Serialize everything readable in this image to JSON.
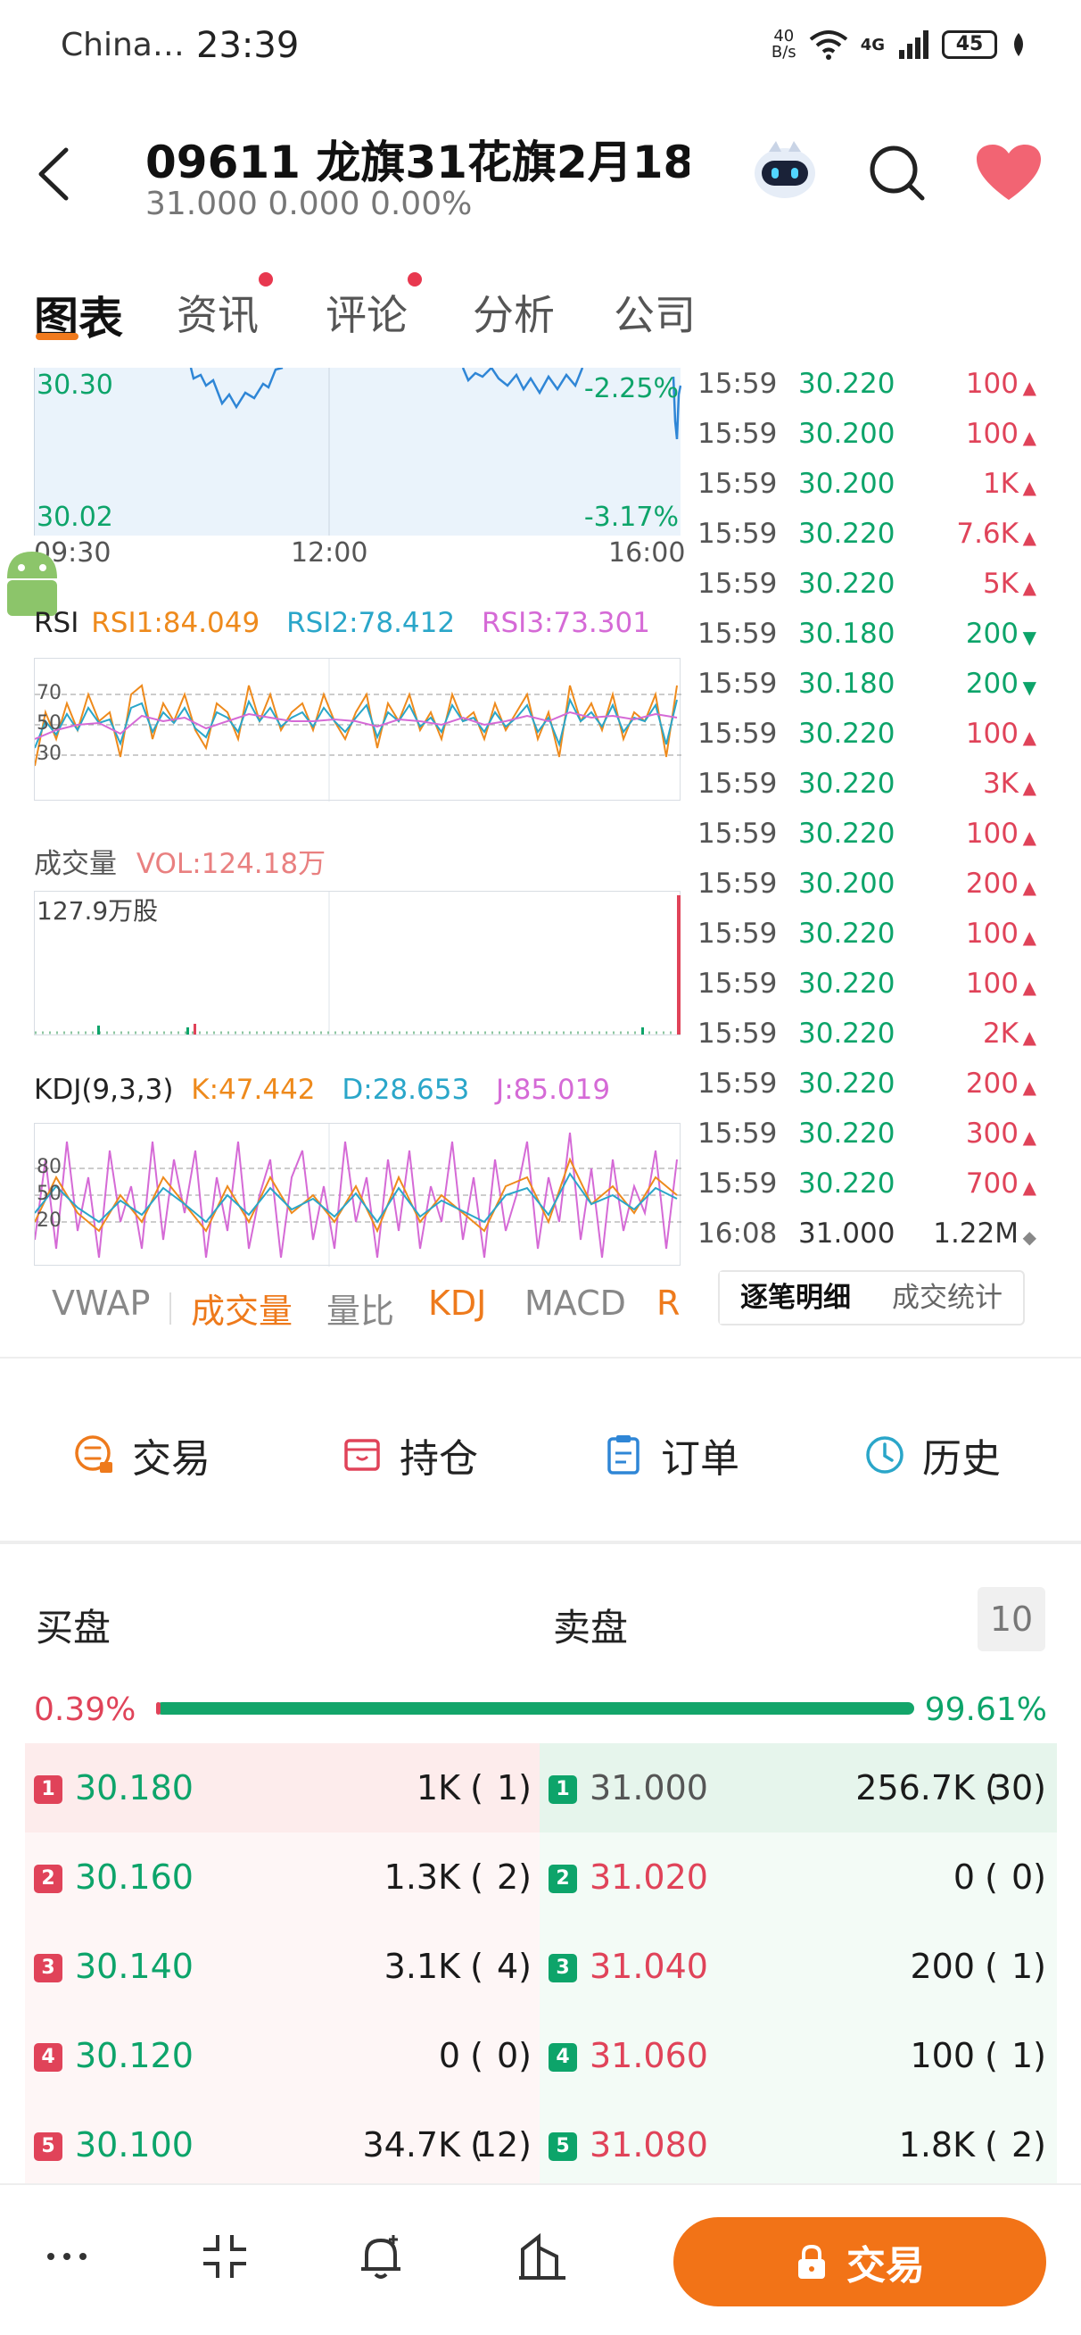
{
  "status_bar": {
    "carrier": "China…",
    "time": "23:39",
    "net_speed_top": "40",
    "net_speed_bottom": "B/s",
    "network": "4G",
    "battery": "45"
  },
  "header": {
    "title": "09611  龙旗31花旗2月18…",
    "price": "31.000",
    "change": "0.000",
    "change_pct": "0.00%",
    "icons": [
      "back-icon",
      "robot-assistant-icon",
      "search-icon",
      "heart-icon"
    ]
  },
  "tabs": [
    {
      "label": "图表",
      "active": true,
      "dot": false
    },
    {
      "label": "资讯",
      "active": false,
      "dot": true
    },
    {
      "label": "评论",
      "active": false,
      "dot": true
    },
    {
      "label": "分析",
      "active": false,
      "dot": false
    },
    {
      "label": "公司",
      "active": false,
      "dot": false
    }
  ],
  "price_chart": {
    "high_label": "30.30",
    "low_label": "30.02",
    "high_pct": "-2.25%",
    "low_pct": "-3.17%",
    "times": [
      "09:30",
      "12:00",
      "16:00"
    ]
  },
  "rsi": {
    "name": "RSI",
    "rsi1": "RSI1:84.049",
    "rsi2": "RSI2:78.412",
    "rsi3": "RSI3:73.301",
    "levels": [
      "70",
      "50",
      "30"
    ]
  },
  "volume": {
    "name": "成交量",
    "vol": "VOL:124.18万",
    "max_label": "127.9万股"
  },
  "kdj": {
    "name": "KDJ(9,3,3)",
    "k": "K:47.442",
    "d": "D:28.653",
    "j": "J:85.019",
    "levels": [
      "80",
      "50",
      "20"
    ]
  },
  "indicator_tabs": [
    {
      "label": "VWAP",
      "color": "gray"
    },
    {
      "label": "成交量",
      "color": "orange"
    },
    {
      "label": "量比",
      "color": "gray"
    },
    {
      "label": "KDJ",
      "color": "orange"
    },
    {
      "label": "MACD",
      "color": "gray"
    },
    {
      "label": "R",
      "color": "orange"
    }
  ],
  "trades": [
    {
      "time": "15:59",
      "price": "30.220",
      "vol": "100",
      "dir": "up"
    },
    {
      "time": "15:59",
      "price": "30.200",
      "vol": "100",
      "dir": "up"
    },
    {
      "time": "15:59",
      "price": "30.200",
      "vol": "1K",
      "dir": "up"
    },
    {
      "time": "15:59",
      "price": "30.220",
      "vol": "7.6K",
      "dir": "up"
    },
    {
      "time": "15:59",
      "price": "30.220",
      "vol": "5K",
      "dir": "up"
    },
    {
      "time": "15:59",
      "price": "30.180",
      "vol": "200",
      "dir": "down"
    },
    {
      "time": "15:59",
      "price": "30.180",
      "vol": "200",
      "dir": "down"
    },
    {
      "time": "15:59",
      "price": "30.220",
      "vol": "100",
      "dir": "up"
    },
    {
      "time": "15:59",
      "price": "30.220",
      "vol": "3K",
      "dir": "up"
    },
    {
      "time": "15:59",
      "price": "30.220",
      "vol": "100",
      "dir": "up"
    },
    {
      "time": "15:59",
      "price": "30.200",
      "vol": "200",
      "dir": "up"
    },
    {
      "time": "15:59",
      "price": "30.220",
      "vol": "100",
      "dir": "up"
    },
    {
      "time": "15:59",
      "price": "30.220",
      "vol": "100",
      "dir": "up"
    },
    {
      "time": "15:59",
      "price": "30.220",
      "vol": "2K",
      "dir": "up"
    },
    {
      "time": "15:59",
      "price": "30.220",
      "vol": "200",
      "dir": "up"
    },
    {
      "time": "15:59",
      "price": "30.220",
      "vol": "300",
      "dir": "up"
    },
    {
      "time": "15:59",
      "price": "30.220",
      "vol": "700",
      "dir": "up"
    },
    {
      "time": "16:08",
      "price": "31.000",
      "vol": "1.22M",
      "dir": "neutral"
    }
  ],
  "trade_tabs": [
    {
      "label": "逐笔明细",
      "active": true
    },
    {
      "label": "成交统计",
      "active": false
    }
  ],
  "actions": [
    {
      "label": "交易",
      "icon": "trade-icon"
    },
    {
      "label": "持仓",
      "icon": "position-icon"
    },
    {
      "label": "订单",
      "icon": "order-icon"
    },
    {
      "label": "历史",
      "icon": "history-icon"
    }
  ],
  "order_book": {
    "bid_title": "买盘",
    "ask_title": "卖盘",
    "levels": "10",
    "bid_ratio": "0.39%",
    "ask_ratio": "99.61%",
    "bid_ratio_value": 0.39,
    "bids": [
      {
        "level": "1",
        "price": "30.180",
        "qty": "1K",
        "orders": "1"
      },
      {
        "level": "2",
        "price": "30.160",
        "qty": "1.3K",
        "orders": "2"
      },
      {
        "level": "3",
        "price": "30.140",
        "qty": "3.1K",
        "orders": "4"
      },
      {
        "level": "4",
        "price": "30.120",
        "qty": "0",
        "orders": "0"
      },
      {
        "level": "5",
        "price": "30.100",
        "qty": "34.7K",
        "orders": "12"
      }
    ],
    "asks": [
      {
        "level": "1",
        "price": "31.000",
        "qty": "256.7K",
        "orders": "30"
      },
      {
        "level": "2",
        "price": "31.020",
        "qty": "0",
        "orders": "0"
      },
      {
        "level": "3",
        "price": "31.040",
        "qty": "200",
        "orders": "1"
      },
      {
        "level": "4",
        "price": "31.060",
        "qty": "100",
        "orders": "1"
      },
      {
        "level": "5",
        "price": "31.080",
        "qty": "1.8K",
        "orders": "2"
      }
    ]
  },
  "bottom_nav": {
    "icons": [
      "more-icon",
      "collapse-icon",
      "price-alert-icon",
      "compare-icon"
    ],
    "cta_label": "交易"
  },
  "colors": {
    "up": "#e04359",
    "down": "#0da46a",
    "accent": "#f27317",
    "rsi1": "#ee8a1c",
    "rsi2": "#2aa6c9",
    "rsi3": "#d56ad6"
  }
}
